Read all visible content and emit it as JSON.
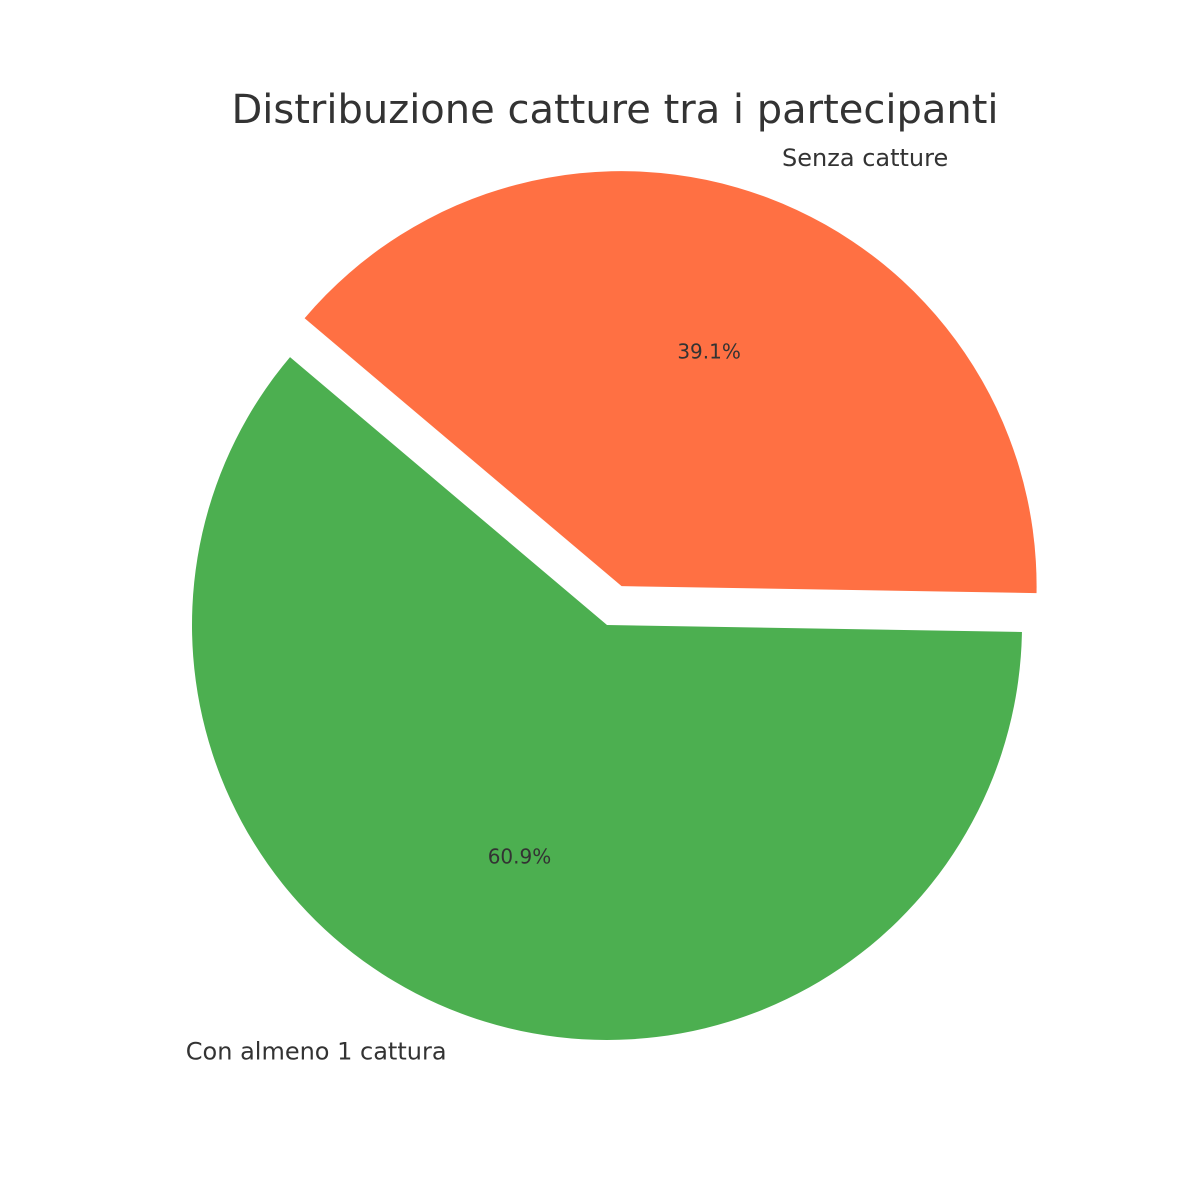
{
  "chart_data": {
    "type": "pie",
    "title": "Distribuzione catture tra i partecipanti",
    "categories": [
      "Con almeno 1 cattura",
      "Senza catture"
    ],
    "values": [
      60.9,
      39.1
    ],
    "value_labels": [
      "60.9%",
      "39.1%"
    ],
    "colors": [
      "#4caf50",
      "#ff7043"
    ]
  }
}
